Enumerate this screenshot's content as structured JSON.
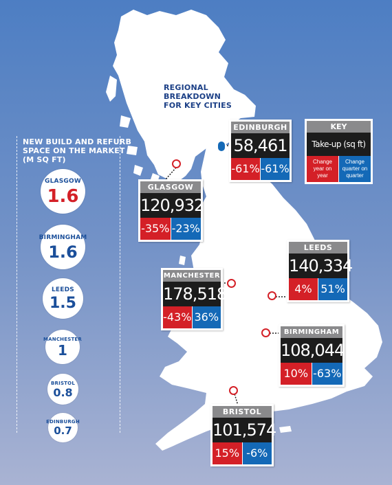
{
  "title": "REGIONAL\nBREAKDOWN\nFOR KEY CITIES",
  "sidebar": {
    "title": "NEW BUILD AND REFURB\nSPACE ON THE MARKET\n(M SQ FT)",
    "items": [
      {
        "name": "GLASGOW",
        "value": "1.6",
        "color": "#d42027"
      },
      {
        "name": "BIRMINGHAM",
        "value": "1.6",
        "color": "#1b4f9a"
      },
      {
        "name": "LEEDS",
        "value": "1.5",
        "color": "#1b4f9a"
      },
      {
        "name": "MANCHESTER",
        "value": "1",
        "color": "#1b4f9a"
      },
      {
        "name": "BRISTOL",
        "value": "0.8",
        "color": "#1b4f9a"
      },
      {
        "name": "EDINBURGH",
        "value": "0.7",
        "color": "#1b4f9a"
      }
    ]
  },
  "key": {
    "title": "KEY",
    "metric": "Take-up (sq ft)",
    "red_label": "Change year on year",
    "blue_label": "Change quarter on quarter"
  },
  "cities": {
    "edinburgh": {
      "name": "EDINBURGH",
      "takeup": "58,461",
      "yoy": "-61%",
      "qoq": "-61%"
    },
    "glasgow": {
      "name": "GLASGOW",
      "takeup": "120,932",
      "yoy": "-35%",
      "qoq": "-23%"
    },
    "leeds": {
      "name": "LEEDS",
      "takeup": "140,334",
      "yoy": "4%",
      "qoq": "51%"
    },
    "manchester": {
      "name": "MANCHESTER",
      "takeup": "178,518",
      "yoy": "-43%",
      "qoq": "36%"
    },
    "birmingham": {
      "name": "BIRMINGHAM",
      "takeup": "108,044",
      "yoy": "10%",
      "qoq": "-63%"
    },
    "bristol": {
      "name": "BRISTOL",
      "takeup": "101,574",
      "yoy": "15%",
      "qoq": "-6%"
    }
  },
  "colors": {
    "red": "#d42027",
    "blue": "#1469b7",
    "header_grey": "#8a8a8c",
    "value_black": "#1c1c1c"
  }
}
